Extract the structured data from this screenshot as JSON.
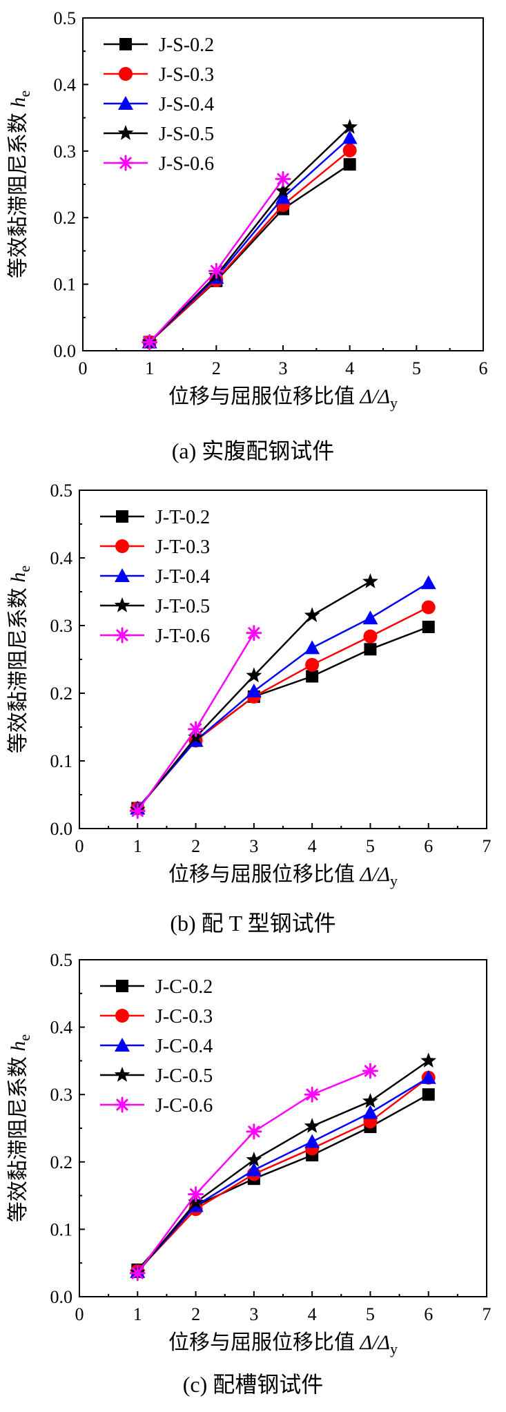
{
  "chart_data": [
    {
      "id": "a",
      "type": "line",
      "caption": "(a)  实腹配钢试件",
      "xlabel_main": "位移与屈服位移比值 ",
      "xlabel_math": "Δ/Δ",
      "xlabel_sub": "y",
      "ylabel_main": "等效黏滞阻尼系数 ",
      "ylabel_math": "h",
      "ylabel_sub": "e",
      "xlim": [
        0,
        6
      ],
      "ylim": [
        0,
        0.5
      ],
      "xticks": [
        "0",
        "1",
        "2",
        "3",
        "4",
        "5",
        "6"
      ],
      "yticks": [
        "0.0",
        "0.1",
        "0.2",
        "0.3",
        "0.4",
        "0.5"
      ],
      "legend_position": "top-left",
      "series": [
        {
          "name": "J-S-0.2",
          "marker": "square",
          "color": "#000000",
          "x": [
            1,
            2,
            3,
            4
          ],
          "y": [
            0.013,
            0.105,
            0.213,
            0.28
          ]
        },
        {
          "name": "J-S-0.3",
          "marker": "circle",
          "color": "#ff0000",
          "x": [
            1,
            2,
            3,
            4
          ],
          "y": [
            0.013,
            0.106,
            0.219,
            0.301
          ]
        },
        {
          "name": "J-S-0.4",
          "marker": "triangle",
          "color": "#0000ff",
          "x": [
            1,
            2,
            3,
            4
          ],
          "y": [
            0.013,
            0.11,
            0.23,
            0.32
          ]
        },
        {
          "name": "J-S-0.5",
          "marker": "star",
          "color": "#000000",
          "x": [
            1,
            2,
            3,
            4
          ],
          "y": [
            0.013,
            0.113,
            0.24,
            0.336
          ]
        },
        {
          "name": "J-S-0.6",
          "marker": "asterisk",
          "color": "#ff00ff",
          "x": [
            1,
            2,
            3
          ],
          "y": [
            0.013,
            0.12,
            0.258
          ]
        }
      ]
    },
    {
      "id": "b",
      "type": "line",
      "caption": "(b)  配 T 型钢试件",
      "xlabel_main": "位移与屈服位移比值 ",
      "xlabel_math": "Δ/Δ",
      "xlabel_sub": "y",
      "ylabel_main": "等效黏滞阻尼系数 ",
      "ylabel_math": "h",
      "ylabel_sub": "e",
      "xlim": [
        0,
        7
      ],
      "ylim": [
        0,
        0.5
      ],
      "xticks": [
        "0",
        "1",
        "2",
        "3",
        "4",
        "5",
        "6",
        "7"
      ],
      "yticks": [
        "0.0",
        "0.1",
        "0.2",
        "0.3",
        "0.4",
        "0.5"
      ],
      "legend_position": "top-left",
      "series": [
        {
          "name": "J-T-0.2",
          "marker": "square",
          "color": "#000000",
          "x": [
            1,
            2,
            3,
            4,
            5,
            6
          ],
          "y": [
            0.03,
            0.13,
            0.195,
            0.225,
            0.265,
            0.298
          ]
        },
        {
          "name": "J-T-0.3",
          "marker": "circle",
          "color": "#ff0000",
          "x": [
            1,
            2,
            3,
            4,
            5,
            6
          ],
          "y": [
            0.03,
            0.13,
            0.195,
            0.242,
            0.284,
            0.327
          ]
        },
        {
          "name": "J-T-0.4",
          "marker": "triangle",
          "color": "#0000ff",
          "x": [
            1,
            2,
            3,
            4,
            5,
            6
          ],
          "y": [
            0.03,
            0.13,
            0.203,
            0.267,
            0.311,
            0.363
          ]
        },
        {
          "name": "J-T-0.5",
          "marker": "star",
          "color": "#000000",
          "x": [
            1,
            2,
            3,
            4,
            5
          ],
          "y": [
            0.028,
            0.135,
            0.226,
            0.315,
            0.365
          ]
        },
        {
          "name": "J-T-0.6",
          "marker": "asterisk",
          "color": "#ff00ff",
          "x": [
            1,
            2,
            3
          ],
          "y": [
            0.026,
            0.147,
            0.289
          ]
        }
      ]
    },
    {
      "id": "c",
      "type": "line",
      "caption": "(c)  配槽钢试件",
      "xlabel_main": "位移与屈服位移比值 ",
      "xlabel_math": "Δ/Δ",
      "xlabel_sub": "y",
      "ylabel_main": "等效黏滞阻尼系数 ",
      "ylabel_math": "h",
      "ylabel_sub": "e",
      "xlim": [
        0,
        7
      ],
      "ylim": [
        0,
        0.5
      ],
      "xticks": [
        "0",
        "1",
        "2",
        "3",
        "4",
        "5",
        "6",
        "7"
      ],
      "yticks": [
        "0.0",
        "0.1",
        "0.2",
        "0.3",
        "0.4",
        "0.5"
      ],
      "legend_position": "top-left",
      "series": [
        {
          "name": "J-C-0.2",
          "marker": "square",
          "color": "#000000",
          "x": [
            1,
            2,
            3,
            4,
            5,
            6
          ],
          "y": [
            0.04,
            0.135,
            0.175,
            0.21,
            0.252,
            0.3
          ]
        },
        {
          "name": "J-C-0.3",
          "marker": "circle",
          "color": "#ff0000",
          "x": [
            1,
            2,
            3,
            4,
            5,
            6
          ],
          "y": [
            0.038,
            0.13,
            0.182,
            0.22,
            0.26,
            0.325
          ]
        },
        {
          "name": "J-C-0.4",
          "marker": "triangle",
          "color": "#0000ff",
          "x": [
            1,
            2,
            3,
            4,
            5,
            6
          ],
          "y": [
            0.037,
            0.135,
            0.188,
            0.23,
            0.273,
            0.325
          ]
        },
        {
          "name": "J-C-0.5",
          "marker": "star",
          "color": "#000000",
          "x": [
            1,
            2,
            3,
            4,
            5,
            6
          ],
          "y": [
            0.036,
            0.14,
            0.203,
            0.253,
            0.29,
            0.35
          ]
        },
        {
          "name": "J-C-0.6",
          "marker": "asterisk",
          "color": "#ff00ff",
          "x": [
            1,
            2,
            3,
            4,
            5
          ],
          "y": [
            0.035,
            0.152,
            0.245,
            0.3,
            0.335
          ]
        }
      ]
    }
  ]
}
